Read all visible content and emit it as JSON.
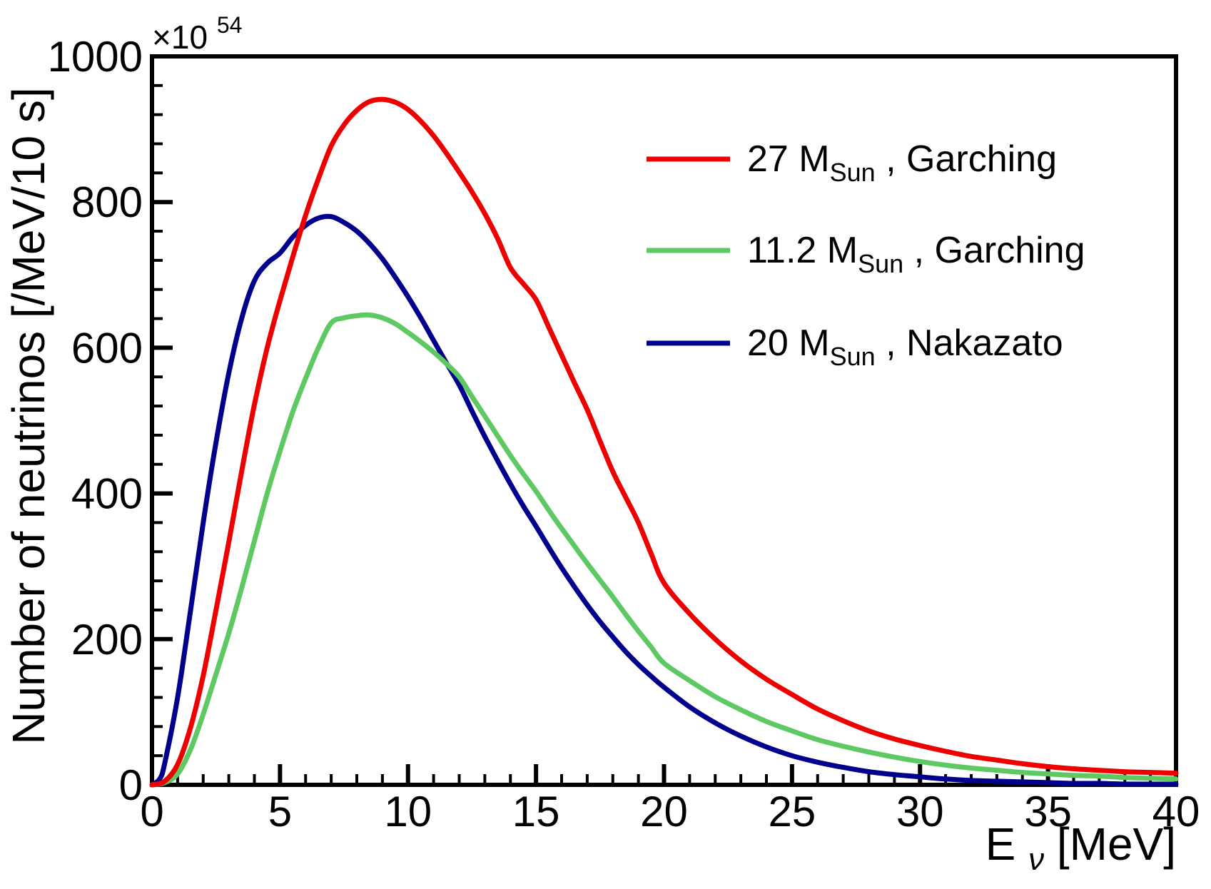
{
  "figure": {
    "background_color": "#ffffff",
    "frame_color": "#000000"
  },
  "chart_data": {
    "type": "line",
    "title": "",
    "grid": false,
    "legend_position": "top-right",
    "x_axis": {
      "title": {
        "base": "E",
        "sub": "ν",
        "rest": " [MeV]"
      },
      "min": 0,
      "max": 40,
      "major_tick_step": 5,
      "minor_tick_step": 1,
      "tick_labels": [
        "0",
        "5",
        "10",
        "15",
        "20",
        "25",
        "30",
        "35",
        "40"
      ]
    },
    "y_axis": {
      "title": "Number of neutrinos [/MeV/10 s]",
      "scale_note": {
        "prefix": "×10",
        "exponent": "54"
      },
      "min": 0,
      "max": 1000,
      "major_tick_step": 200,
      "minor_tick_step": 40,
      "tick_labels": [
        "0",
        "200",
        "400",
        "600",
        "800",
        "1000"
      ]
    },
    "series": [
      {
        "name": "20 MSun, Nakazato",
        "slug": "nakazato-20msun",
        "color": "#00008c",
        "legend": {
          "value": "20 M",
          "sub": "Sun",
          "rest": " , Nakazato"
        },
        "peak": {
          "x": 6.9,
          "y": 780
        },
        "points": [
          [
            0,
            0
          ],
          [
            0.3,
            8
          ],
          [
            0.5,
            30
          ],
          [
            1,
            120
          ],
          [
            1.5,
            238
          ],
          [
            2,
            360
          ],
          [
            2.5,
            470
          ],
          [
            3,
            565
          ],
          [
            3.5,
            640
          ],
          [
            4,
            692
          ],
          [
            4.5,
            716
          ],
          [
            5,
            730
          ],
          [
            5.5,
            752
          ],
          [
            6,
            768
          ],
          [
            6.5,
            778
          ],
          [
            7,
            780
          ],
          [
            7.5,
            772
          ],
          [
            8,
            760
          ],
          [
            8.5,
            743
          ],
          [
            9,
            722
          ],
          [
            9.5,
            697
          ],
          [
            10,
            670
          ],
          [
            10.5,
            641
          ],
          [
            11,
            610
          ],
          [
            11.5,
            579
          ],
          [
            12,
            549
          ],
          [
            12.5,
            513
          ],
          [
            13,
            478
          ],
          [
            13.5,
            445
          ],
          [
            14,
            413
          ],
          [
            14.5,
            383
          ],
          [
            15,
            355
          ],
          [
            15.5,
            326
          ],
          [
            16,
            298
          ],
          [
            16.5,
            272
          ],
          [
            17,
            247
          ],
          [
            17.5,
            224
          ],
          [
            18,
            203
          ],
          [
            18.5,
            183
          ],
          [
            19,
            165
          ],
          [
            19.5,
            149
          ],
          [
            20,
            134
          ],
          [
            21,
            107
          ],
          [
            22,
            85
          ],
          [
            23,
            67
          ],
          [
            24,
            52
          ],
          [
            25,
            40
          ],
          [
            26,
            31
          ],
          [
            27,
            24
          ],
          [
            28,
            18
          ],
          [
            29,
            14
          ],
          [
            30,
            11
          ],
          [
            31,
            8
          ],
          [
            32,
            6
          ],
          [
            33,
            5
          ],
          [
            34,
            4
          ],
          [
            35,
            3
          ],
          [
            36,
            2
          ],
          [
            37,
            2
          ],
          [
            38,
            1
          ],
          [
            39,
            1
          ],
          [
            40,
            1
          ]
        ]
      },
      {
        "name": "11.2 MSun, Garching",
        "slug": "garching-11p2msun",
        "color": "#5ec863",
        "legend": {
          "value": "11.2 M",
          "sub": "Sun",
          "rest": " , Garching"
        },
        "peak": {
          "x": 8.4,
          "y": 645
        },
        "points": [
          [
            0,
            0
          ],
          [
            0.5,
            3
          ],
          [
            1,
            15
          ],
          [
            1.5,
            48
          ],
          [
            2,
            97
          ],
          [
            2.5,
            152
          ],
          [
            3,
            208
          ],
          [
            3.5,
            270
          ],
          [
            4,
            335
          ],
          [
            4.5,
            400
          ],
          [
            5,
            458
          ],
          [
            5.5,
            512
          ],
          [
            6,
            558
          ],
          [
            6.5,
            600
          ],
          [
            7,
            634
          ],
          [
            7.5,
            641
          ],
          [
            8,
            644
          ],
          [
            8.5,
            645
          ],
          [
            9,
            641
          ],
          [
            9.5,
            633
          ],
          [
            10,
            621
          ],
          [
            10.5,
            608
          ],
          [
            11,
            594
          ],
          [
            11.5,
            578
          ],
          [
            12,
            560
          ],
          [
            12.5,
            533
          ],
          [
            13,
            506
          ],
          [
            13.5,
            479
          ],
          [
            14,
            452
          ],
          [
            14.5,
            427
          ],
          [
            15,
            403
          ],
          [
            15.5,
            377
          ],
          [
            16,
            352
          ],
          [
            16.5,
            328
          ],
          [
            17,
            304
          ],
          [
            17.5,
            281
          ],
          [
            18,
            258
          ],
          [
            18.5,
            234
          ],
          [
            19,
            211
          ],
          [
            19.5,
            189
          ],
          [
            20,
            167
          ],
          [
            21,
            143
          ],
          [
            22,
            121
          ],
          [
            23,
            103
          ],
          [
            24,
            87
          ],
          [
            25,
            74
          ],
          [
            26,
            62
          ],
          [
            27,
            53
          ],
          [
            28,
            45
          ],
          [
            29,
            38
          ],
          [
            30,
            32
          ],
          [
            31,
            27
          ],
          [
            32,
            23
          ],
          [
            33,
            20
          ],
          [
            34,
            17
          ],
          [
            35,
            15
          ],
          [
            36,
            13
          ],
          [
            37,
            12
          ],
          [
            38,
            10
          ],
          [
            39,
            9
          ],
          [
            40,
            8
          ]
        ]
      },
      {
        "name": "27 MSun, Garching",
        "slug": "garching-27msun",
        "color": "#ee0000",
        "legend": {
          "value": "27 M",
          "sub": "Sun",
          "rest": " , Garching"
        },
        "peak": {
          "x": 9.0,
          "y": 941
        },
        "points": [
          [
            0,
            0
          ],
          [
            0.5,
            5
          ],
          [
            1,
            28
          ],
          [
            1.5,
            78
          ],
          [
            2,
            150
          ],
          [
            2.5,
            240
          ],
          [
            3,
            333
          ],
          [
            3.5,
            430
          ],
          [
            4,
            522
          ],
          [
            4.5,
            600
          ],
          [
            5,
            665
          ],
          [
            5.5,
            725
          ],
          [
            6,
            782
          ],
          [
            6.5,
            832
          ],
          [
            7,
            877
          ],
          [
            7.5,
            906
          ],
          [
            8,
            926
          ],
          [
            8.5,
            938
          ],
          [
            9,
            941
          ],
          [
            9.5,
            937
          ],
          [
            10,
            927
          ],
          [
            10.5,
            911
          ],
          [
            11,
            891
          ],
          [
            11.5,
            867
          ],
          [
            12,
            841
          ],
          [
            12.5,
            814
          ],
          [
            13,
            784
          ],
          [
            13.5,
            750
          ],
          [
            14,
            710
          ],
          [
            14.5,
            688
          ],
          [
            15,
            666
          ],
          [
            15.5,
            628
          ],
          [
            16,
            590
          ],
          [
            16.5,
            552
          ],
          [
            17,
            515
          ],
          [
            17.5,
            472
          ],
          [
            18,
            430
          ],
          [
            18.5,
            395
          ],
          [
            19,
            360
          ],
          [
            19.5,
            317
          ],
          [
            20,
            277
          ],
          [
            21,
            235
          ],
          [
            22,
            200
          ],
          [
            23,
            170
          ],
          [
            24,
            145
          ],
          [
            25,
            124
          ],
          [
            26,
            104
          ],
          [
            27,
            88
          ],
          [
            28,
            74
          ],
          [
            29,
            63
          ],
          [
            30,
            54
          ],
          [
            31,
            46
          ],
          [
            32,
            39
          ],
          [
            33,
            34
          ],
          [
            34,
            29
          ],
          [
            35,
            25
          ],
          [
            36,
            22
          ],
          [
            37,
            20
          ],
          [
            38,
            18
          ],
          [
            39,
            17
          ],
          [
            40,
            16
          ]
        ]
      }
    ],
    "legend_order_top_to_bottom": [
      "garching-27msun",
      "garching-11p2msun",
      "nakazato-20msun"
    ]
  }
}
